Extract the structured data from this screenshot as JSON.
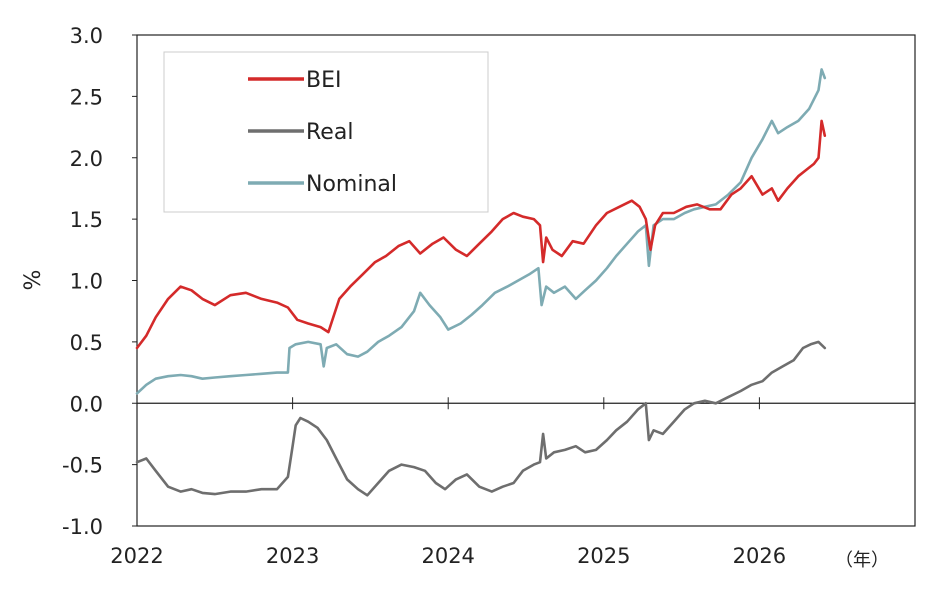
{
  "chart_data": {
    "type": "line",
    "ylabel": "%",
    "x_unit_label": "（年）",
    "xlim": [
      2022.0,
      2027.0
    ],
    "ylim": [
      -1.0,
      3.0
    ],
    "x_ticks": [
      2022,
      2023,
      2024,
      2025,
      2026
    ],
    "x_tick_labels": [
      "2022",
      "2023",
      "2024",
      "2025",
      "2026"
    ],
    "y_ticks": [
      3.0,
      2.5,
      2.0,
      1.5,
      1.0,
      0.5,
      0.0,
      -0.5,
      -1.0
    ],
    "y_tick_labels": [
      "3.0",
      "2.5",
      "2.0",
      "1.5",
      "1.0",
      "0.5",
      "0.0",
      "-0.5",
      "-1.0"
    ],
    "grid": false,
    "legend_position": "top-left",
    "series": [
      {
        "name": "BEI",
        "color": "#d42a2a",
        "x": [
          2022.0,
          2022.06,
          2022.12,
          2022.2,
          2022.28,
          2022.35,
          2022.42,
          2022.5,
          2022.6,
          2022.7,
          2022.8,
          2022.9,
          2022.97,
          2023.03,
          2023.1,
          2023.18,
          2023.23,
          2023.3,
          2023.37,
          2023.45,
          2023.53,
          2023.6,
          2023.68,
          2023.75,
          2023.82,
          2023.9,
          2023.97,
          2024.05,
          2024.12,
          2024.2,
          2024.28,
          2024.35,
          2024.42,
          2024.48,
          2024.55,
          2024.59,
          2024.61,
          2024.63,
          2024.67,
          2024.73,
          2024.8,
          2024.87,
          2024.95,
          2025.02,
          2025.1,
          2025.18,
          2025.23,
          2025.27,
          2025.3,
          2025.33,
          2025.38,
          2025.45,
          2025.53,
          2025.6,
          2025.68,
          2025.75,
          2025.82,
          2025.88,
          2025.95,
          2026.02,
          2026.08,
          2026.12,
          2026.18,
          2026.25,
          2026.3,
          2026.35,
          2026.38,
          2026.4,
          2026.42
        ],
        "y": [
          0.45,
          0.55,
          0.7,
          0.85,
          0.95,
          0.92,
          0.85,
          0.8,
          0.88,
          0.9,
          0.85,
          0.82,
          0.78,
          0.68,
          0.65,
          0.62,
          0.58,
          0.85,
          0.95,
          1.05,
          1.15,
          1.2,
          1.28,
          1.32,
          1.22,
          1.3,
          1.35,
          1.25,
          1.2,
          1.3,
          1.4,
          1.5,
          1.55,
          1.52,
          1.5,
          1.45,
          1.15,
          1.35,
          1.25,
          1.2,
          1.32,
          1.3,
          1.45,
          1.55,
          1.6,
          1.65,
          1.6,
          1.5,
          1.25,
          1.45,
          1.55,
          1.55,
          1.6,
          1.62,
          1.58,
          1.58,
          1.7,
          1.75,
          1.85,
          1.7,
          1.75,
          1.65,
          1.75,
          1.85,
          1.9,
          1.95,
          2.0,
          2.3,
          2.18
        ]
      },
      {
        "name": "Real",
        "color": "#6e6e6e",
        "x": [
          2022.0,
          2022.06,
          2022.12,
          2022.2,
          2022.28,
          2022.35,
          2022.42,
          2022.5,
          2022.6,
          2022.7,
          2022.8,
          2022.9,
          2022.97,
          2023.0,
          2023.02,
          2023.05,
          2023.1,
          2023.16,
          2023.22,
          2023.28,
          2023.35,
          2023.42,
          2023.48,
          2023.55,
          2023.62,
          2023.7,
          2023.78,
          2023.85,
          2023.92,
          2023.98,
          2024.05,
          2024.12,
          2024.2,
          2024.28,
          2024.35,
          2024.42,
          2024.48,
          2024.55,
          2024.59,
          2024.61,
          2024.63,
          2024.68,
          2024.75,
          2024.82,
          2024.88,
          2024.95,
          2025.02,
          2025.08,
          2025.15,
          2025.22,
          2025.27,
          2025.29,
          2025.32,
          2025.38,
          2025.45,
          2025.52,
          2025.58,
          2025.65,
          2025.72,
          2025.8,
          2025.88,
          2025.95,
          2026.02,
          2026.08,
          2026.15,
          2026.22,
          2026.28,
          2026.33,
          2026.38,
          2026.42
        ],
        "y": [
          -0.48,
          -0.45,
          -0.55,
          -0.68,
          -0.72,
          -0.7,
          -0.73,
          -0.74,
          -0.72,
          -0.72,
          -0.7,
          -0.7,
          -0.6,
          -0.35,
          -0.18,
          -0.12,
          -0.15,
          -0.2,
          -0.3,
          -0.45,
          -0.62,
          -0.7,
          -0.75,
          -0.65,
          -0.55,
          -0.5,
          -0.52,
          -0.55,
          -0.65,
          -0.7,
          -0.62,
          -0.58,
          -0.68,
          -0.72,
          -0.68,
          -0.65,
          -0.55,
          -0.5,
          -0.48,
          -0.25,
          -0.45,
          -0.4,
          -0.38,
          -0.35,
          -0.4,
          -0.38,
          -0.3,
          -0.22,
          -0.15,
          -0.05,
          0.0,
          -0.3,
          -0.22,
          -0.25,
          -0.15,
          -0.05,
          0.0,
          0.02,
          0.0,
          0.05,
          0.1,
          0.15,
          0.18,
          0.25,
          0.3,
          0.35,
          0.45,
          0.48,
          0.5,
          0.45
        ]
      },
      {
        "name": "Nominal",
        "color": "#7eabb3",
        "x": [
          2022.0,
          2022.06,
          2022.12,
          2022.2,
          2022.28,
          2022.35,
          2022.42,
          2022.5,
          2022.6,
          2022.7,
          2022.8,
          2022.9,
          2022.97,
          2022.98,
          2023.02,
          2023.1,
          2023.18,
          2023.2,
          2023.22,
          2023.28,
          2023.35,
          2023.42,
          2023.48,
          2023.55,
          2023.62,
          2023.7,
          2023.78,
          2023.82,
          2023.88,
          2023.95,
          2024.0,
          2024.08,
          2024.15,
          2024.22,
          2024.3,
          2024.38,
          2024.45,
          2024.52,
          2024.58,
          2024.6,
          2024.63,
          2024.68,
          2024.75,
          2024.82,
          2024.88,
          2024.95,
          2025.02,
          2025.08,
          2025.15,
          2025.22,
          2025.27,
          2025.29,
          2025.32,
          2025.38,
          2025.45,
          2025.52,
          2025.58,
          2025.65,
          2025.72,
          2025.8,
          2025.88,
          2025.95,
          2026.02,
          2026.08,
          2026.12,
          2026.18,
          2026.25,
          2026.32,
          2026.38,
          2026.4,
          2026.42
        ],
        "y": [
          0.08,
          0.15,
          0.2,
          0.22,
          0.23,
          0.22,
          0.2,
          0.21,
          0.22,
          0.23,
          0.24,
          0.25,
          0.25,
          0.45,
          0.48,
          0.5,
          0.48,
          0.3,
          0.45,
          0.48,
          0.4,
          0.38,
          0.42,
          0.5,
          0.55,
          0.62,
          0.75,
          0.9,
          0.8,
          0.7,
          0.6,
          0.65,
          0.72,
          0.8,
          0.9,
          0.95,
          1.0,
          1.05,
          1.1,
          0.8,
          0.95,
          0.9,
          0.95,
          0.85,
          0.92,
          1.0,
          1.1,
          1.2,
          1.3,
          1.4,
          1.45,
          1.12,
          1.45,
          1.5,
          1.5,
          1.55,
          1.58,
          1.6,
          1.62,
          1.7,
          1.8,
          2.0,
          2.15,
          2.3,
          2.2,
          2.25,
          2.3,
          2.4,
          2.55,
          2.72,
          2.65
        ]
      }
    ]
  }
}
